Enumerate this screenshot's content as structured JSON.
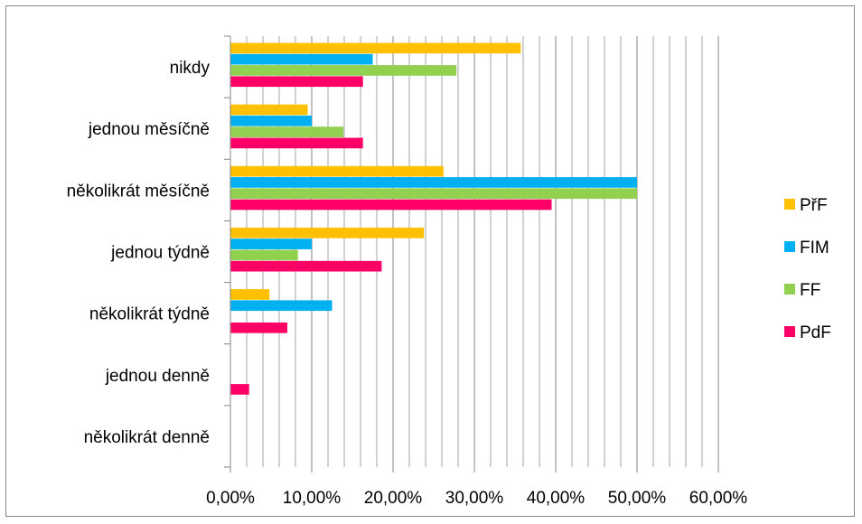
{
  "chart_data": {
    "type": "bar",
    "orientation": "horizontal",
    "categories": [
      "nikdy",
      "jednou měsíčně",
      "několikrát měsíčně",
      "jednou týdně",
      "několikrát týdně",
      "jednou denně",
      "několikrát denně"
    ],
    "series": [
      {
        "name": "PřF",
        "color": "#FFC000",
        "values": [
          35.7,
          9.5,
          26.2,
          23.8,
          4.8,
          0,
          0
        ]
      },
      {
        "name": "FIM",
        "color": "#00B0F0",
        "values": [
          17.5,
          10.0,
          50.0,
          10.0,
          12.5,
          0,
          0
        ]
      },
      {
        "name": "FF",
        "color": "#92D050",
        "values": [
          27.8,
          13.9,
          50.0,
          8.3,
          0,
          0,
          0
        ]
      },
      {
        "name": "PdF",
        "color": "#FF0066",
        "values": [
          16.3,
          16.3,
          39.5,
          18.6,
          7.0,
          2.3,
          0
        ]
      }
    ],
    "xlim": [
      0,
      60
    ],
    "xticks": [
      0,
      10,
      20,
      30,
      40,
      50,
      60
    ],
    "xtick_labels": [
      "0,00%",
      "10,00%",
      "20,00%",
      "30,00%",
      "40,00%",
      "50,00%",
      "60,00%"
    ],
    "minor_gridlines_step": 2,
    "grid": true,
    "legend_position": "right",
    "title": "",
    "xlabel": "",
    "ylabel": ""
  }
}
